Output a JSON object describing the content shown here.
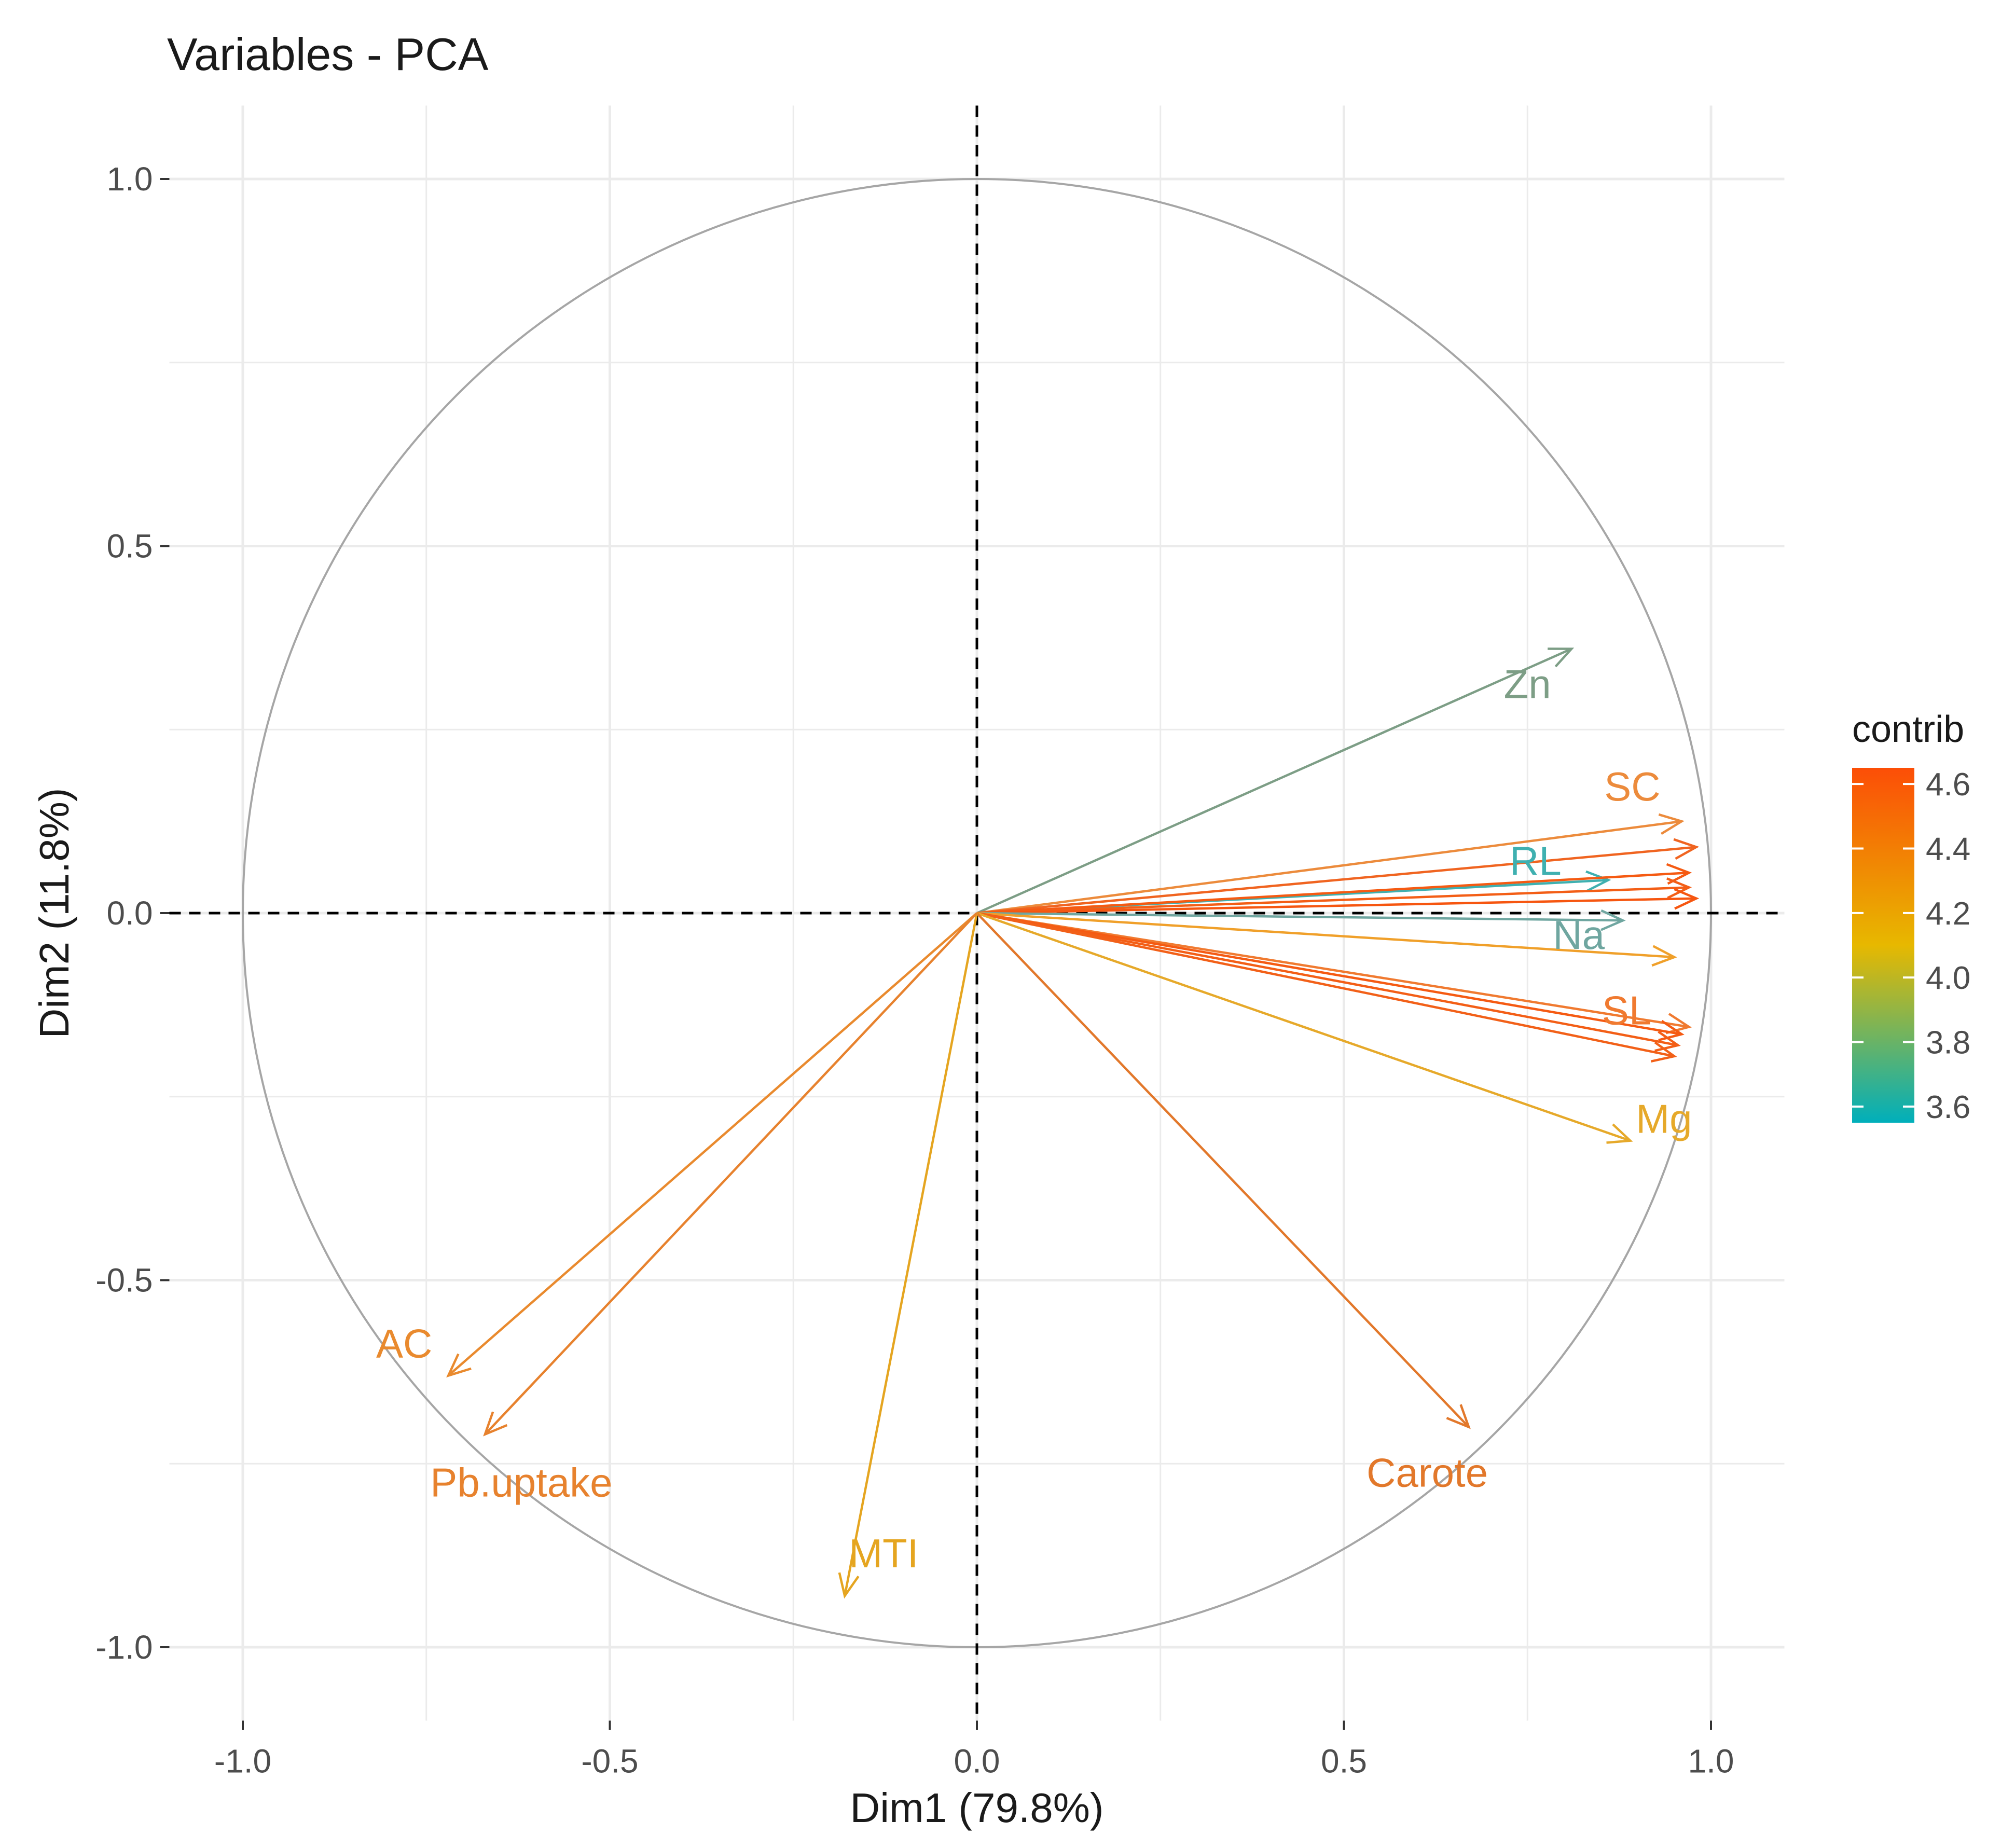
{
  "chart_data": {
    "type": "scatter",
    "subtype": "pca-variable-correlation-circle",
    "title": "Variables - PCA",
    "xlabel": "Dim1 (79.8%)",
    "ylabel": "Dim2 (11.8%)",
    "xlim": [
      -1.1,
      1.1
    ],
    "ylim": [
      -1.1,
      1.1
    ],
    "xticks": [
      "-1.0",
      "-0.5",
      "0.0",
      "0.5",
      "1.0"
    ],
    "xtick_values": [
      -1.0,
      -0.5,
      0.0,
      0.5,
      1.0
    ],
    "yticks": [
      "1.0",
      "0.5",
      "0.0",
      "-0.5",
      "-1.0"
    ],
    "ytick_values": [
      1.0,
      0.5,
      0.0,
      -0.5,
      -1.0
    ],
    "grid": true,
    "unit_circle": true,
    "reference_lines": [
      "x = 0 (dashed)",
      "y = 0 (dashed)"
    ],
    "legend": {
      "title": "contrib",
      "placement": "right",
      "range": [
        3.55,
        4.65
      ],
      "tick_labels": [
        "4.6",
        "4.4",
        "4.2",
        "4.0",
        "3.8",
        "3.6"
      ],
      "tick_values": [
        4.6,
        4.4,
        4.2,
        4.0,
        3.8,
        3.6
      ],
      "colors_low_to_high": [
        "#00AFBB",
        "#E7B800",
        "#FC4E07"
      ]
    },
    "variables": [
      {
        "name": "Zn",
        "label": "Zn",
        "x": 0.81,
        "y": 0.36,
        "contrib": 3.75,
        "color": "#7d9e86"
      },
      {
        "name": "SC",
        "label": "SC",
        "x": 0.96,
        "y": 0.125,
        "contrib": 4.32,
        "color": "#ec8b3c"
      },
      {
        "name": "v03",
        "label": "",
        "x": 0.98,
        "y": 0.09,
        "contrib": 4.55,
        "color": "#f06420"
      },
      {
        "name": "RL",
        "label": "RL",
        "x": 0.86,
        "y": 0.045,
        "contrib": 3.62,
        "color": "#3fb0b0"
      },
      {
        "name": "v05",
        "label": "",
        "x": 0.97,
        "y": 0.055,
        "contrib": 4.6,
        "color": "#f55a12"
      },
      {
        "name": "v06",
        "label": "",
        "x": 0.97,
        "y": 0.035,
        "contrib": 4.58,
        "color": "#f35e16"
      },
      {
        "name": "v07",
        "label": "",
        "x": 0.98,
        "y": 0.02,
        "contrib": 4.62,
        "color": "#f65610"
      },
      {
        "name": "Na",
        "label": "Na",
        "x": 0.88,
        "y": -0.01,
        "contrib": 3.72,
        "color": "#6fa6a0"
      },
      {
        "name": "v09",
        "label": "",
        "x": 0.95,
        "y": -0.06,
        "contrib": 4.28,
        "color": "#f0a02a"
      },
      {
        "name": "SL",
        "label": "SL",
        "x": 0.97,
        "y": -0.155,
        "contrib": 4.36,
        "color": "#f07a30"
      },
      {
        "name": "v11",
        "label": "",
        "x": 0.96,
        "y": -0.165,
        "contrib": 4.6,
        "color": "#f55a12"
      },
      {
        "name": "v12",
        "label": "",
        "x": 0.955,
        "y": -0.18,
        "contrib": 4.58,
        "color": "#f35e16"
      },
      {
        "name": "v13",
        "label": "",
        "x": 0.95,
        "y": -0.195,
        "contrib": 4.57,
        "color": "#f26018"
      },
      {
        "name": "Mg",
        "label": "Mg",
        "x": 0.89,
        "y": -0.31,
        "contrib": 4.2,
        "color": "#e6a92a"
      },
      {
        "name": "Carote",
        "label": "Carote",
        "x": 0.67,
        "y": -0.7,
        "contrib": 4.45,
        "color": "#e2782b"
      },
      {
        "name": "MTI",
        "label": "MTI",
        "x": -0.18,
        "y": -0.93,
        "contrib": 4.22,
        "color": "#e5a520"
      },
      {
        "name": "AC",
        "label": "AC",
        "x": -0.72,
        "y": -0.63,
        "contrib": 4.38,
        "color": "#e98a2e"
      },
      {
        "name": "Pb.uptake",
        "label": "Pb.uptake",
        "x": -0.67,
        "y": -0.71,
        "contrib": 4.4,
        "color": "#e7822e"
      }
    ]
  }
}
